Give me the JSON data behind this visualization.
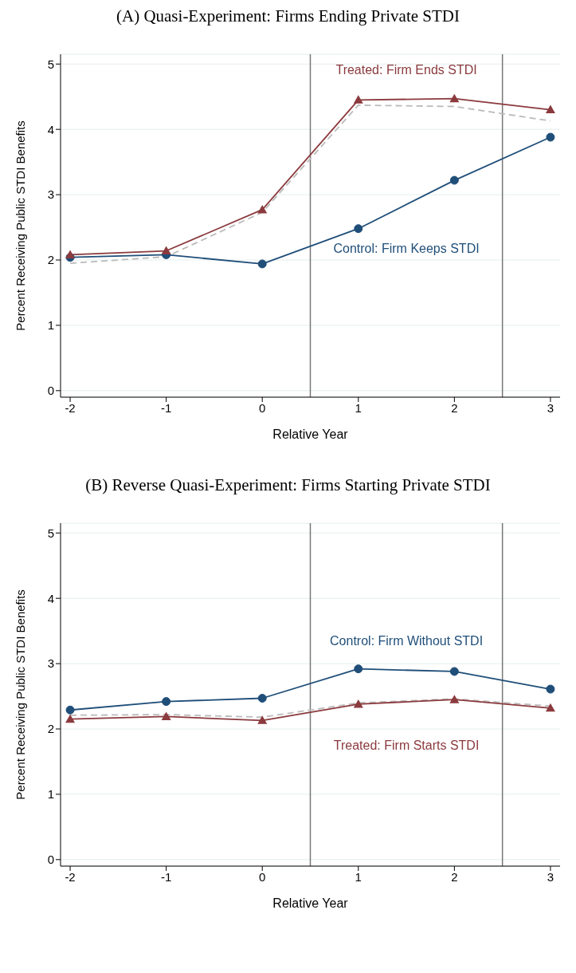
{
  "chart_data": [
    {
      "type": "line",
      "title": "(A) Quasi-Experiment: Firms Ending Private STDI",
      "xlabel": "Relative Year",
      "ylabel": "Percent Receiving Public STDI Benefits",
      "x": [
        -2,
        -1,
        0,
        1,
        2,
        3
      ],
      "xlim": [
        -2.1,
        3.1
      ],
      "xticks": [
        -2,
        -1,
        0,
        1,
        2,
        3
      ],
      "ylim": [
        -0.1,
        5.15
      ],
      "yticks": [
        0,
        1,
        2,
        3,
        4,
        5
      ],
      "grid": "y",
      "series": [
        {
          "color": "#8b3a3e",
          "marker": "triangle",
          "line_style": "solid",
          "values": [
            2.08,
            2.14,
            2.77,
            4.45,
            4.47,
            4.3
          ]
        },
        {
          "color": "#1f4e79",
          "marker": "circle",
          "line_style": "solid",
          "values": [
            2.04,
            2.08,
            1.94,
            2.48,
            3.22,
            3.88
          ]
        },
        {
          "color": "#bbbbbb",
          "marker": "none",
          "line_style": "dashed",
          "values": [
            1.95,
            2.05,
            2.73,
            4.37,
            4.35,
            4.13
          ]
        }
      ],
      "annotations": [
        "Treated: Firm Ends STDI",
        "Control: Firm Keeps STDI"
      ],
      "ref_lines": [
        {
          "axis": "x",
          "value": 0.5,
          "color": "#777777"
        },
        {
          "axis": "x",
          "value": 2.5,
          "color": "#777777"
        }
      ]
    },
    {
      "type": "line",
      "title": "(B) Reverse Quasi-Experiment: Firms Starting Private STDI",
      "xlabel": "Relative Year",
      "ylabel": "Percent Receiving Public STDI Benefits",
      "x": [
        -2,
        -1,
        0,
        1,
        2,
        3
      ],
      "xlim": [
        -2.1,
        3.1
      ],
      "xticks": [
        -2,
        -1,
        0,
        1,
        2,
        3
      ],
      "ylim": [
        -0.1,
        5.15
      ],
      "yticks": [
        0,
        1,
        2,
        3,
        4,
        5
      ],
      "grid": "y",
      "series": [
        {
          "color": "#8b3a3e",
          "marker": "triangle",
          "line_style": "solid",
          "values": [
            2.15,
            2.19,
            2.13,
            2.38,
            2.45,
            2.32
          ]
        },
        {
          "color": "#1f4e79",
          "marker": "circle",
          "line_style": "solid",
          "values": [
            2.29,
            2.42,
            2.47,
            2.92,
            2.88,
            2.61
          ]
        },
        {
          "color": "#bbbbbb",
          "marker": "none",
          "line_style": "dashed",
          "values": [
            2.21,
            2.22,
            2.18,
            2.4,
            2.46,
            2.35
          ]
        }
      ],
      "annotations": [
        "Treated: Firm Starts STDI",
        "Control: Firm Without STDI"
      ],
      "ref_lines": [
        {
          "axis": "x",
          "value": 0.5,
          "color": "#777777"
        },
        {
          "axis": "x",
          "value": 2.5,
          "color": "#777777"
        }
      ]
    }
  ]
}
